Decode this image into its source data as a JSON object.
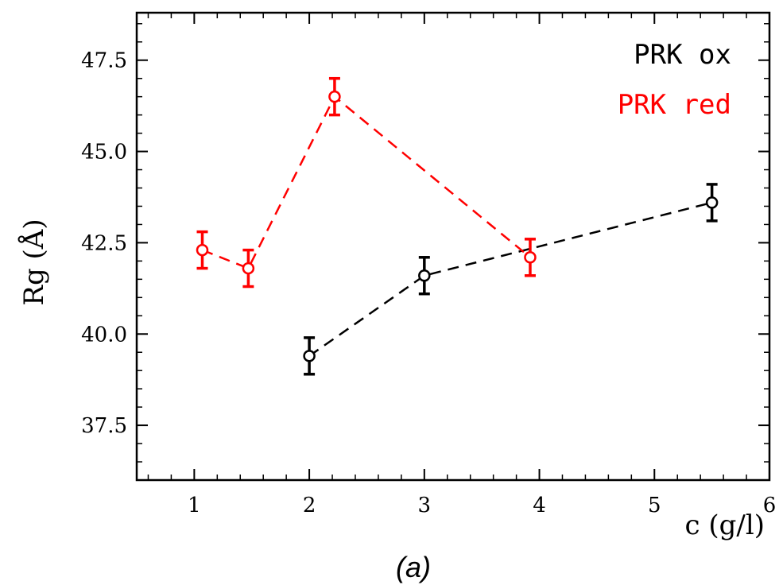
{
  "chart_data": {
    "type": "scatter",
    "title": "",
    "caption": "(a)",
    "xlabel": "c (g/l)",
    "ylabel": "Rg (Å)",
    "xlim": [
      0.5,
      6
    ],
    "ylim": [
      36,
      48.8
    ],
    "x_ticks": [
      1,
      2,
      3,
      4,
      5,
      6
    ],
    "x_tick_labels": [
      "1",
      "2",
      "3",
      "4",
      "5",
      "6"
    ],
    "y_ticks": [
      37.5,
      40.0,
      42.5,
      45.0,
      47.5
    ],
    "y_tick_labels": [
      "37.5",
      "40.0",
      "42.5",
      "45.0",
      "47.5"
    ],
    "grid": false,
    "legend_position": "top-right",
    "series": [
      {
        "name": "PRK ox",
        "color": "#000000",
        "line_style": "dashed",
        "marker": "open-circle",
        "x": [
          2.0,
          3.0,
          5.5
        ],
        "y": [
          39.4,
          41.6,
          43.6
        ],
        "error": [
          0.5,
          0.5,
          0.5
        ]
      },
      {
        "name": "PRK red",
        "color": "#ff0000",
        "line_style": "dashed",
        "marker": "open-circle",
        "x": [
          1.07,
          1.47,
          2.22,
          3.92
        ],
        "y": [
          42.3,
          41.8,
          46.5,
          42.1
        ],
        "error": [
          0.5,
          0.5,
          0.5,
          0.5
        ]
      }
    ]
  }
}
